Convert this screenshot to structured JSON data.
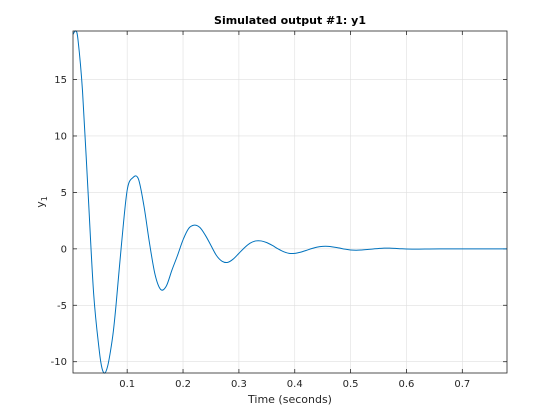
{
  "chart_data": {
    "type": "line",
    "title": "Simulated output #1: y1",
    "xlabel": "Time (seconds)",
    "ylabel_main": "y",
    "ylabel_sub": "1",
    "xlim": [
      0.003,
      0.78
    ],
    "ylim": [
      -11,
      19.3
    ],
    "grid": true,
    "x_ticks": [
      {
        "value": 0.1,
        "label": "0.1"
      },
      {
        "value": 0.2,
        "label": "0.2"
      },
      {
        "value": 0.3,
        "label": "0.3"
      },
      {
        "value": 0.4,
        "label": "0.4"
      },
      {
        "value": 0.5,
        "label": "0.5"
      },
      {
        "value": 0.6,
        "label": "0.6"
      },
      {
        "value": 0.7,
        "label": "0.7"
      }
    ],
    "y_ticks": [
      {
        "value": -10,
        "label": "-10"
      },
      {
        "value": -5,
        "label": "-5"
      },
      {
        "value": 0,
        "label": "0"
      },
      {
        "value": 5,
        "label": "5"
      },
      {
        "value": 10,
        "label": "10"
      },
      {
        "value": 15,
        "label": "15"
      }
    ],
    "line_color": "#0072bd",
    "series": [
      {
        "x": [
          0.003,
          0.008,
          0.012,
          0.02,
          0.03,
          0.04,
          0.05,
          0.055,
          0.06,
          0.065,
          0.07,
          0.075,
          0.08,
          0.09,
          0.1,
          0.11,
          0.12,
          0.13,
          0.14,
          0.15,
          0.16,
          0.17,
          0.18,
          0.19,
          0.2,
          0.21,
          0.22,
          0.23,
          0.24,
          0.25,
          0.26,
          0.27,
          0.28,
          0.29,
          0.3,
          0.31,
          0.32,
          0.33,
          0.34,
          0.35,
          0.36,
          0.37,
          0.38,
          0.39,
          0.4,
          0.41,
          0.42,
          0.43,
          0.44,
          0.45,
          0.46,
          0.47,
          0.48,
          0.49,
          0.5,
          0.51,
          0.52,
          0.53,
          0.54,
          0.55,
          0.56,
          0.57,
          0.58,
          0.59,
          0.6,
          0.62,
          0.64,
          0.66,
          0.68,
          0.7,
          0.72,
          0.74,
          0.76,
          0.78
        ],
        "y": [
          19,
          19.3,
          18.5,
          14,
          5,
          -4,
          -9,
          -10.6,
          -11,
          -10.4,
          -9.1,
          -7.4,
          -5,
          0.5,
          5.2,
          6.3,
          6.2,
          3.8,
          0.5,
          -2.3,
          -3.6,
          -3.3,
          -1.9,
          -0.6,
          0.8,
          1.8,
          2.1,
          1.9,
          1.2,
          0.3,
          -0.6,
          -1.1,
          -1.2,
          -0.9,
          -0.4,
          0.1,
          0.5,
          0.7,
          0.7,
          0.55,
          0.3,
          0.0,
          -0.25,
          -0.4,
          -0.4,
          -0.3,
          -0.15,
          0.02,
          0.15,
          0.22,
          0.22,
          0.15,
          0.07,
          -0.03,
          -0.1,
          -0.12,
          -0.1,
          -0.06,
          -0.01,
          0.03,
          0.06,
          0.06,
          0.04,
          0.01,
          -0.01,
          -0.02,
          -0.01,
          0.0,
          0.0,
          0.0,
          0.0,
          0.0,
          0.0,
          0.0
        ]
      }
    ]
  }
}
